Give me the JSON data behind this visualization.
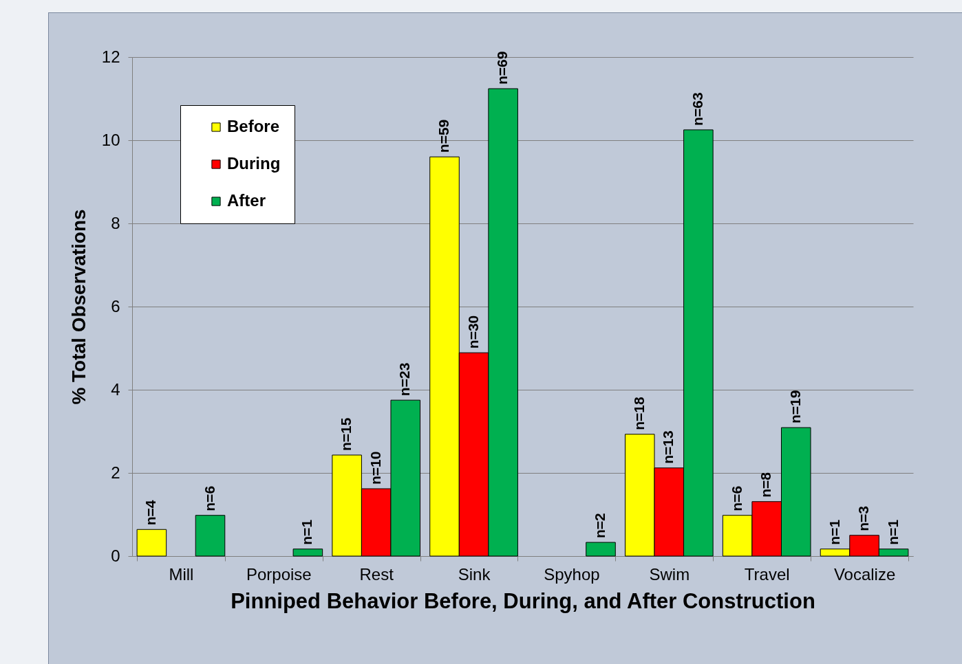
{
  "chart_data": {
    "type": "bar",
    "xlabel": "Pinniped Behavior Before, During, and After Construction",
    "ylabel": "% Total Observations",
    "categories": [
      "Mill",
      "Porpoise",
      "Rest",
      "Sink",
      "Spyhop",
      "Swim",
      "Travel",
      "Vocalize"
    ],
    "series": [
      {
        "name": "Before",
        "color": "#ffff00",
        "values": [
          0.64,
          null,
          2.43,
          9.6,
          null,
          2.93,
          0.98,
          0.17
        ]
      },
      {
        "name": "During",
        "color": "#ff0000",
        "values": [
          null,
          null,
          1.62,
          4.89,
          null,
          2.12,
          1.31,
          0.5
        ]
      },
      {
        "name": "After",
        "color": "#00b050",
        "values": [
          0.98,
          0.17,
          3.75,
          11.24,
          0.33,
          10.25,
          3.09,
          0.17
        ]
      }
    ],
    "annotations": [
      "n=4",
      "n=6",
      "n=1",
      "n=15",
      "n=10",
      "n=23",
      "n=59",
      "n=30",
      "n=69",
      "n=2",
      "n=18",
      "n=13",
      "n=63",
      "n=6",
      "n=8",
      "n=19",
      "n=1",
      "n=3",
      "n=1"
    ],
    "ylim": [
      0,
      12
    ],
    "yticks": [
      0,
      2,
      4,
      6,
      8,
      10,
      12
    ],
    "grid": "y",
    "legend": "top left"
  }
}
